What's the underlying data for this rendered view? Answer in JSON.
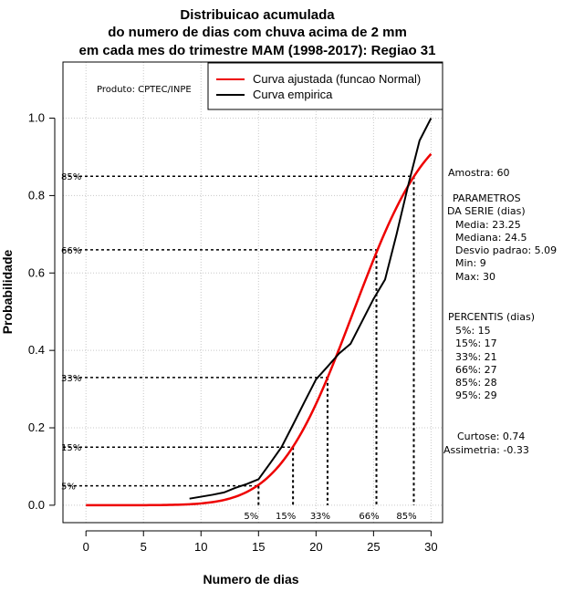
{
  "chart_data": {
    "type": "line",
    "title_lines": [
      "Distribuicao acumulada",
      "do numero de dias com chuva acima de 2 mm",
      "em cada mes do trimestre MAM (1998-2017): Regiao 31"
    ],
    "xlabel": "Numero de dias",
    "ylabel": "Probabilidade",
    "xlim": [
      -2,
      31
    ],
    "ylim": [
      -0.045,
      1.145
    ],
    "xticks": [
      0,
      5,
      10,
      15,
      20,
      25,
      30
    ],
    "yticks": [
      0.0,
      0.2,
      0.4,
      0.6,
      0.8,
      1.0
    ],
    "ytick_labels": [
      "0.0",
      "0.2",
      "0.4",
      "0.6",
      "0.8",
      "1.0"
    ],
    "credit": "Produto: CPTEC/INPE",
    "legend": [
      {
        "label": "Curva ajustada (funcao Normal)",
        "color": "#ee0000"
      },
      {
        "label": "Curva empirica",
        "color": "#000000"
      }
    ],
    "normal_fit": {
      "name": "Curva ajustada (funcao Normal)",
      "mean": 23.25,
      "sd": 5.09,
      "x_from": 0,
      "x_to": 30
    },
    "empirical": {
      "name": "Curva empirica",
      "x": [
        9,
        10,
        11,
        12,
        13,
        14,
        15,
        16,
        17,
        18,
        19,
        20,
        21,
        22,
        23,
        24,
        25,
        26,
        27,
        28,
        29,
        30
      ],
      "y": [
        0.017,
        0.022,
        0.027,
        0.033,
        0.045,
        0.055,
        0.067,
        0.108,
        0.15,
        0.208,
        0.267,
        0.325,
        0.358,
        0.392,
        0.417,
        0.475,
        0.533,
        0.583,
        0.7,
        0.825,
        0.942,
        1.0
      ]
    },
    "percentile_lines": [
      {
        "label": "5%",
        "x": 15.0,
        "p": 0.05
      },
      {
        "label": "15%",
        "x": 18.0,
        "p": 0.15
      },
      {
        "label": "33%",
        "x": 21.0,
        "p": 0.33
      },
      {
        "label": "66%",
        "x": 25.25,
        "p": 0.66
      },
      {
        "label": "85%",
        "x": 28.5,
        "p": 0.85
      }
    ],
    "y_marker_labels": [
      "5%",
      "15%",
      "33%",
      "66%",
      "85%"
    ]
  },
  "stats": {
    "amostra": "Amostra: 60",
    "param_header_1": "PARAMETROS",
    "param_header_2": "DA SERIE (dias)",
    "media": "Media: 23.25",
    "mediana": "Mediana: 24.5",
    "desvio": "Desvio padrao: 5.09",
    "min": "Min: 9",
    "max": "Max: 30",
    "percentis_header": "PERCENTIS (dias)",
    "percentis": [
      "5%: 15",
      "15%: 17",
      "33%: 21",
      "66%: 27",
      "85%: 28",
      "95%: 29"
    ],
    "curtose": "Curtose: 0.74",
    "assimetria": "Assimetria: -0.33"
  }
}
